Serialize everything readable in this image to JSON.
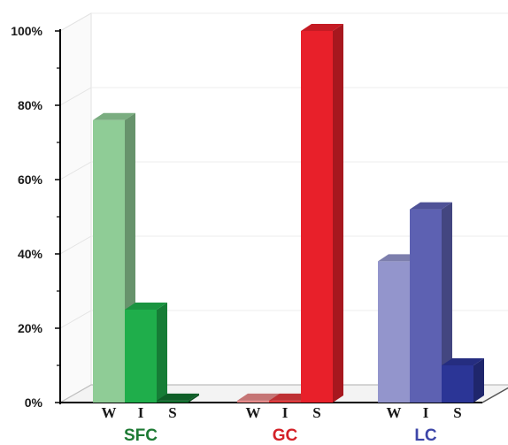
{
  "chart_data": {
    "type": "bar",
    "title": "",
    "xlabel": "",
    "ylabel": "",
    "ylim": [
      0,
      100
    ],
    "y_ticks": [
      "0%",
      "20%",
      "40%",
      "60%",
      "80%",
      "100%"
    ],
    "grid": true,
    "legend": "none",
    "categories": [
      "W",
      "I",
      "S"
    ],
    "groups": [
      {
        "name": "SFC",
        "label_color": "#1e7a34",
        "values": [
          76,
          25,
          0.5
        ],
        "colors": [
          "#8fcc96",
          "#1fae4b",
          "#106f2e"
        ]
      },
      {
        "name": "GC",
        "label_color": "#d42128",
        "values": [
          0.5,
          0.5,
          100
        ],
        "colors": [
          "#e88a8a",
          "#e0393c",
          "#e8202a"
        ]
      },
      {
        "name": "LC",
        "label_color": "#3d46a8",
        "values": [
          38,
          52,
          10
        ],
        "colors": [
          "#9395cc",
          "#5d61b2",
          "#2b3596"
        ]
      }
    ]
  }
}
